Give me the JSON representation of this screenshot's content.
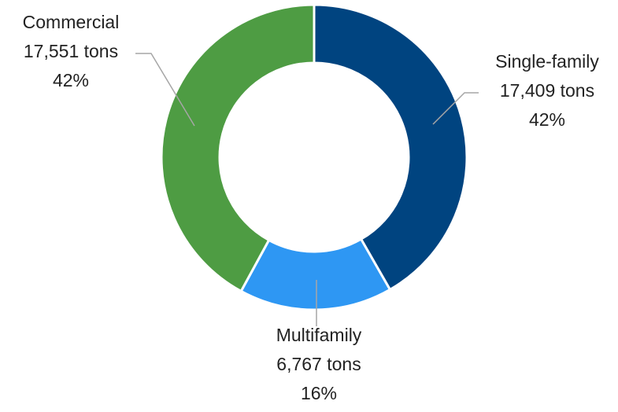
{
  "chart_data": {
    "type": "donut",
    "categories": [
      "Single-family",
      "Multifamily",
      "Commercial"
    ],
    "values": [
      17409,
      6767,
      17551
    ],
    "value_labels": [
      "17,409 tons",
      "6,767 tons",
      "17,551 tons"
    ],
    "percentages": [
      42,
      16,
      42
    ],
    "percentage_labels": [
      "42%",
      "16%",
      "42%"
    ],
    "colors": [
      "#004480",
      "#2e97f3",
      "#4e9c43"
    ]
  }
}
